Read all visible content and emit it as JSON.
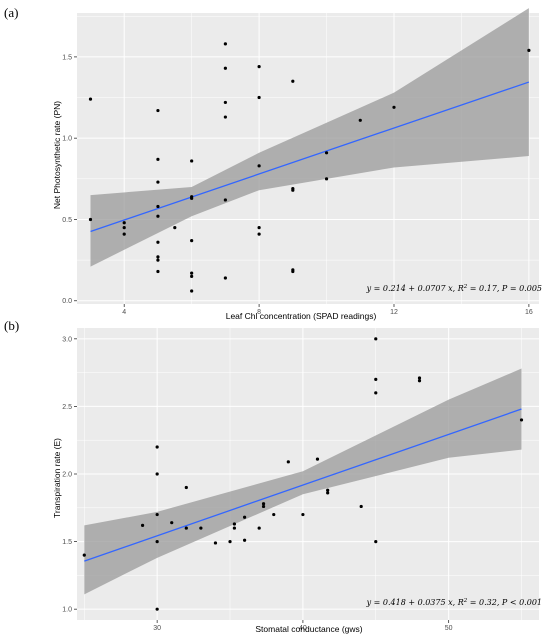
{
  "chart_data": [
    {
      "panel_label": "(a)",
      "type": "scatter",
      "xlabel": "Leaf Chl concentration (SPAD readings)",
      "ylabel": "Net Photosynthetic rate (PN)",
      "xlim": [
        2.6,
        16.3
      ],
      "ylim": [
        -0.02,
        1.77
      ],
      "xticks": [
        4,
        8,
        12,
        16
      ],
      "yticks": [
        0.0,
        0.5,
        1.0,
        1.5
      ],
      "ytick_labels": [
        "0.0",
        "0.5",
        "1.0",
        "1.5"
      ],
      "grid": true,
      "points": [
        [
          3.0,
          1.24
        ],
        [
          3.0,
          0.5
        ],
        [
          4.0,
          0.48
        ],
        [
          4.0,
          0.45
        ],
        [
          4.0,
          0.41
        ],
        [
          5.0,
          1.17
        ],
        [
          5.0,
          0.87
        ],
        [
          5.0,
          0.73
        ],
        [
          5.0,
          0.58
        ],
        [
          5.0,
          0.52
        ],
        [
          5.0,
          0.36
        ],
        [
          5.0,
          0.27
        ],
        [
          5.0,
          0.25
        ],
        [
          5.0,
          0.18
        ],
        [
          5.5,
          0.45
        ],
        [
          6.0,
          0.86
        ],
        [
          6.0,
          0.64
        ],
        [
          6.0,
          0.63
        ],
        [
          6.0,
          0.37
        ],
        [
          6.0,
          0.17
        ],
        [
          6.0,
          0.15
        ],
        [
          6.0,
          0.06
        ],
        [
          7.0,
          1.58
        ],
        [
          7.0,
          1.43
        ],
        [
          7.0,
          1.22
        ],
        [
          7.0,
          1.13
        ],
        [
          7.0,
          0.62
        ],
        [
          7.0,
          0.14
        ],
        [
          8.0,
          1.44
        ],
        [
          8.0,
          1.25
        ],
        [
          8.0,
          0.83
        ],
        [
          8.0,
          0.45
        ],
        [
          8.0,
          0.41
        ],
        [
          9.0,
          1.35
        ],
        [
          9.0,
          0.69
        ],
        [
          9.0,
          0.68
        ],
        [
          9.0,
          0.19
        ],
        [
          9.0,
          0.18
        ],
        [
          10.0,
          0.91
        ],
        [
          10.0,
          0.75
        ],
        [
          11.0,
          1.11
        ],
        [
          12.0,
          1.19
        ],
        [
          16.0,
          1.54
        ]
      ],
      "fit": {
        "intercept": 0.214,
        "slope": 0.0707,
        "x_range": [
          3.0,
          16.0
        ],
        "band": [
          [
            3.0,
            0.21,
            0.65
          ],
          [
            6.0,
            0.52,
            0.7
          ],
          [
            8.0,
            0.68,
            0.91
          ],
          [
            12.0,
            0.82,
            1.28
          ],
          [
            16.0,
            0.89,
            1.8
          ]
        ],
        "line_color": "#3366ff",
        "band_color": "#999999"
      },
      "annotation": {
        "pre": "y = 0.214 + 0.0707 x, R",
        "sup": "2",
        "post": " = 0.17, P = 0.005"
      }
    },
    {
      "panel_label": "(b)",
      "type": "scatter",
      "xlabel": "Stomatal conductance (gws)",
      "ylabel": "Transpiration rate (E)",
      "xlim": [
        24.5,
        56.2
      ],
      "ylim": [
        0.92,
        3.08
      ],
      "xticks": [
        30,
        40,
        50
      ],
      "yticks": [
        1.0,
        1.5,
        2.0,
        2.5,
        3.0
      ],
      "ytick_labels": [
        "1.0",
        "1.5",
        "2.0",
        "2.5",
        "3.0"
      ],
      "grid": true,
      "points": [
        [
          25.0,
          1.4
        ],
        [
          29.0,
          1.62
        ],
        [
          30.0,
          2.2
        ],
        [
          30.0,
          2.0
        ],
        [
          30.0,
          1.7
        ],
        [
          30.0,
          1.5
        ],
        [
          30.0,
          1.0
        ],
        [
          31.0,
          1.64
        ],
        [
          32.0,
          1.9
        ],
        [
          32.0,
          1.6
        ],
        [
          33.0,
          1.6
        ],
        [
          34.0,
          1.49
        ],
        [
          35.0,
          1.5
        ],
        [
          35.3,
          1.6
        ],
        [
          35.3,
          1.63
        ],
        [
          36.0,
          1.51
        ],
        [
          36.0,
          1.68
        ],
        [
          37.0,
          1.6
        ],
        [
          37.3,
          1.76
        ],
        [
          37.3,
          1.78
        ],
        [
          38.0,
          1.7
        ],
        [
          39.0,
          2.09
        ],
        [
          40.0,
          1.7
        ],
        [
          41.0,
          2.11
        ],
        [
          41.7,
          1.86
        ],
        [
          41.7,
          1.88
        ],
        [
          44.0,
          1.76
        ],
        [
          45.0,
          3.0
        ],
        [
          45.0,
          2.7
        ],
        [
          45.0,
          2.6
        ],
        [
          45.0,
          1.5
        ],
        [
          48.0,
          2.69
        ],
        [
          48.0,
          2.71
        ],
        [
          55.0,
          2.4
        ]
      ],
      "fit": {
        "intercept": 0.418,
        "slope": 0.0375,
        "x_range": [
          25.0,
          55.0
        ],
        "band": [
          [
            25.0,
            1.11,
            1.62
          ],
          [
            30.0,
            1.38,
            1.72
          ],
          [
            40.0,
            1.85,
            2.02
          ],
          [
            50.0,
            2.12,
            2.55
          ],
          [
            55.0,
            2.18,
            2.78
          ]
        ],
        "line_color": "#3366ff",
        "band_color": "#999999"
      },
      "annotation": {
        "pre": "y = 0.418 + 0.0375 x, R",
        "sup": "2",
        "post": " = 0.32, P < 0.001"
      }
    }
  ]
}
